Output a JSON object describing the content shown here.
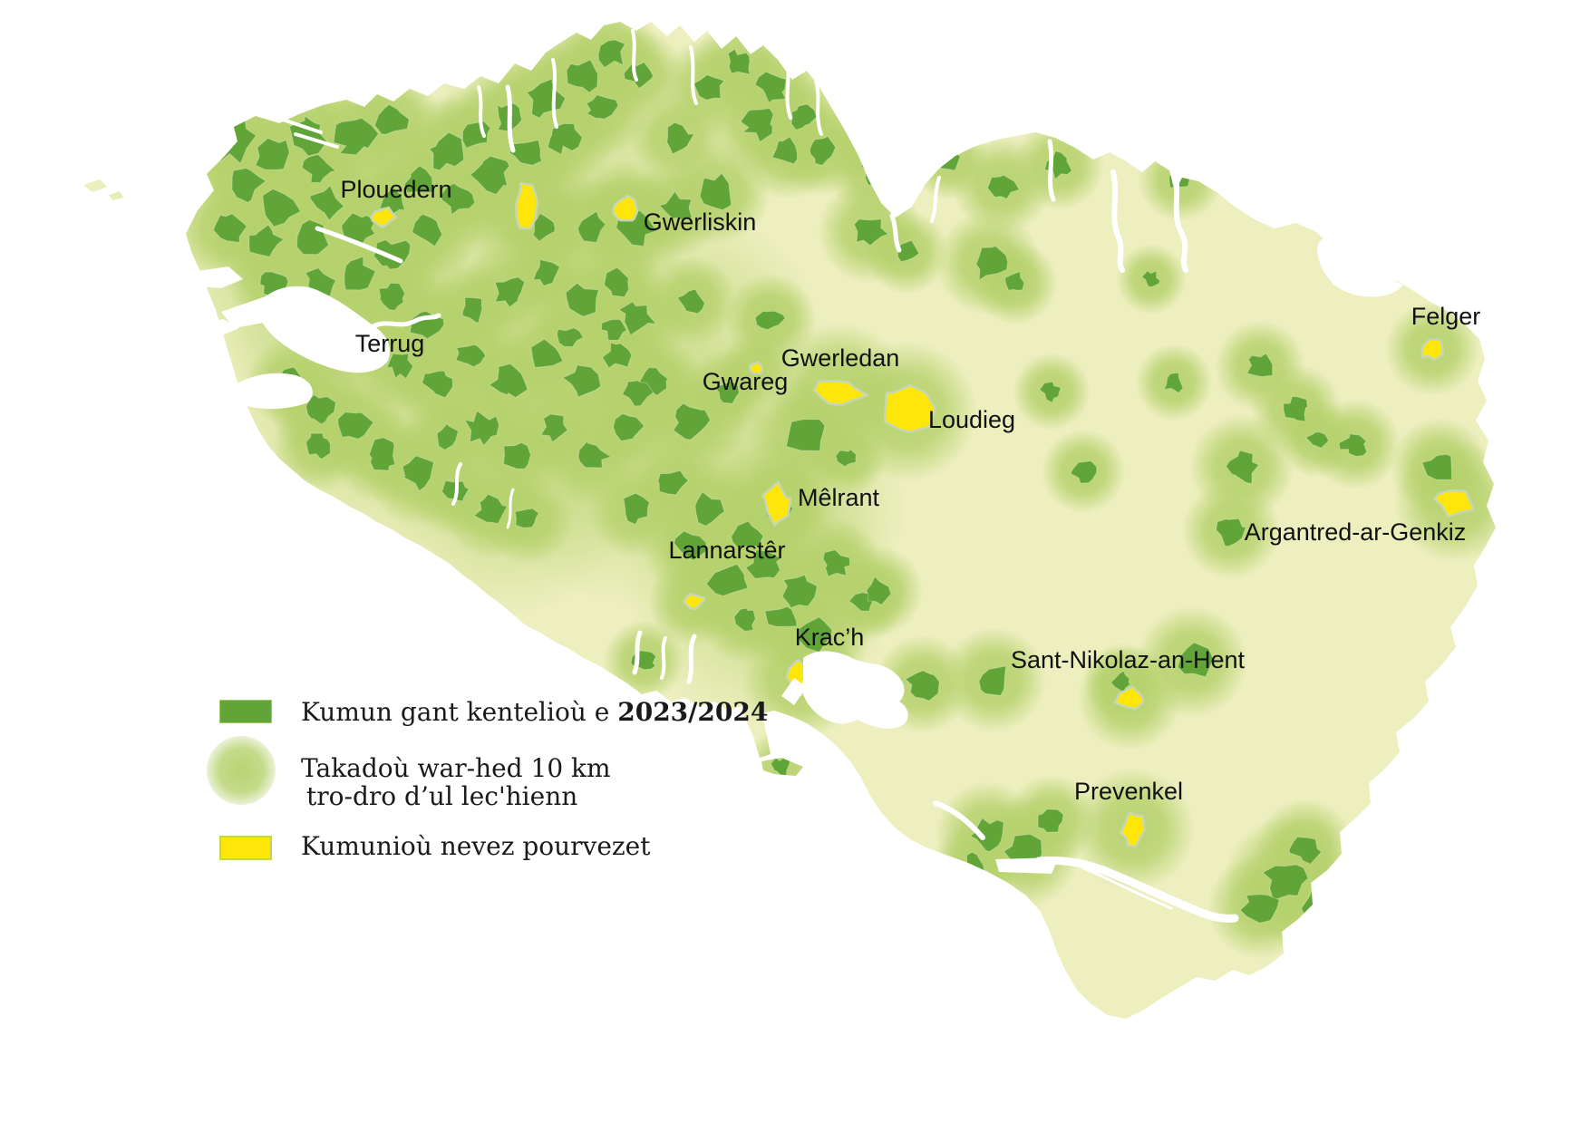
{
  "map": {
    "labels": [
      "Plouedern",
      "Gwerliskin",
      "Terrug",
      "Gwerledan",
      "Gwareg",
      "Loudieg",
      "Felger",
      "Mêlrant",
      "Lannarstêr",
      "Argantred-ar-Genkiz",
      "Krac’h",
      "Sant-Nikolaz-an-Hent",
      "Prevenkel"
    ]
  },
  "legend": {
    "communes": {
      "prefix": "Kumun gant kentelioù e ",
      "bold": "2023/2024"
    },
    "areas": {
      "line1": "Takadoù war-hed 10 km",
      "line2": "tro-dro d’ul lec'hienn"
    },
    "new_communes": {
      "label": "Kumunioù nevez pourvezet"
    }
  },
  "colors": {
    "land": "#edefbf",
    "commune_green": "#61a438",
    "halo_green": "#b5d16c",
    "new_commune_yellow": "#ffe60a",
    "new_commune_stroke": "#c6d7b6",
    "label_text": "#111111",
    "water": "#ffffff"
  }
}
